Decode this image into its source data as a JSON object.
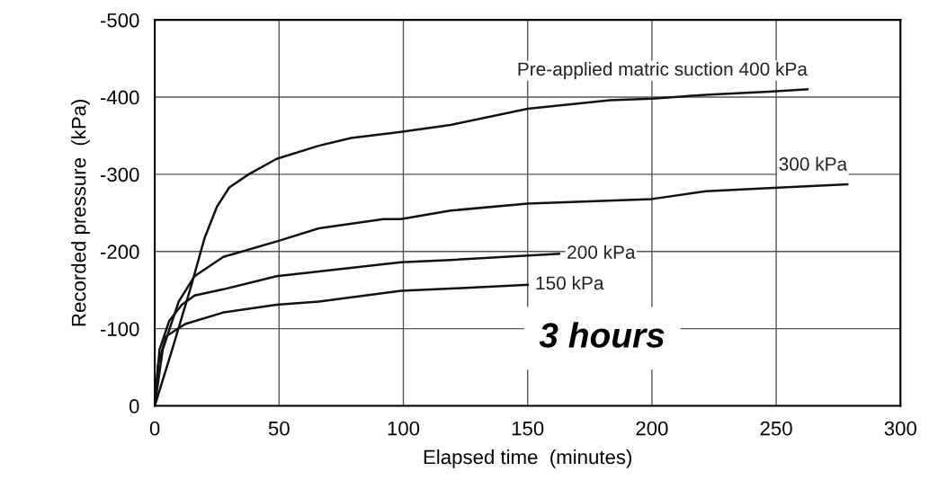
{
  "chart_data": {
    "type": "line",
    "xlabel": "Elapsed time  (minutes)",
    "ylabel": "Recorded pressure  (kPa)",
    "xlim": [
      0,
      300
    ],
    "xticks": [
      0,
      50,
      100,
      150,
      200,
      250,
      300
    ],
    "ylim": [
      0,
      -500
    ],
    "yticks": [
      0,
      -100,
      -200,
      -300,
      -400,
      -500
    ],
    "grid": true,
    "legend": false,
    "marker": "none",
    "line_style": "solid",
    "annotations": [
      "3 hours"
    ],
    "series": [
      {
        "name": "Pre-applied matric suction 400 kPa",
        "color": "#111111",
        "x": [
          0,
          7,
          14.7,
          20,
          25,
          30,
          37.8,
          49,
          66,
          79,
          99,
          119,
          150,
          183,
          200,
          221.6,
          247,
          262.6
        ],
        "values": [
          0,
          -73,
          -156,
          -217,
          -258,
          -283,
          -300,
          -320,
          -337,
          -347,
          -355,
          -364,
          -385,
          -396,
          -398,
          -403,
          -407,
          -410
        ]
      },
      {
        "name": "300 kPa",
        "color": "#111111",
        "x": [
          0,
          3.2,
          9.6,
          16,
          27.6,
          49,
          66,
          92,
          99,
          119,
          150,
          200,
          221.6,
          247,
          278.6
        ],
        "values": [
          0,
          -73,
          -135,
          -168,
          -193,
          -213,
          -230,
          -242,
          -242,
          -253,
          -262,
          -268,
          -278,
          -282,
          -287
        ]
      },
      {
        "name": "200 kPa",
        "color": "#111111",
        "x": [
          0,
          1.9,
          5.8,
          10.9,
          16,
          27.6,
          49,
          66,
          99,
          119,
          162.7
        ],
        "values": [
          0,
          -73,
          -110,
          -131,
          -143,
          -151,
          -168,
          -174,
          -186,
          -189,
          -197
        ]
      },
      {
        "name": "150 kPa",
        "color": "#111111",
        "x": [
          0,
          1.3,
          4.5,
          12.2,
          27.6,
          49,
          66,
          99,
          119,
          150
        ],
        "values": [
          0,
          -53,
          -90,
          -106,
          -121,
          -131,
          -135,
          -149,
          -152,
          -157
        ]
      }
    ]
  }
}
